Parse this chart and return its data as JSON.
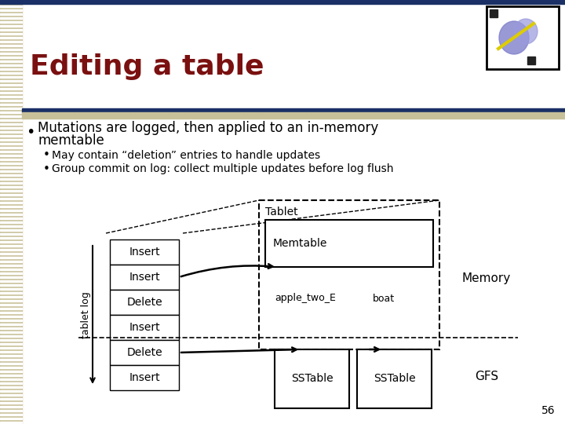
{
  "title": "Editing a table",
  "title_color": "#7a1010",
  "title_fontsize": 26,
  "slide_bg": "#ffffff",
  "left_stripe_color": "#c8c099",
  "top_bar_color": "#1a3066",
  "top_bar2_color": "#1a3066",
  "sep_bar_color": "#c8c099",
  "bullet1_line1": "Mutations are logged, then applied to an in-memory",
  "bullet1_line2": "memtable",
  "bullet2a": "May contain “deletion” entries to handle updates",
  "bullet2b": "Group commit on log: collect multiple updates before log flush",
  "log_labels": [
    "Insert",
    "Insert",
    "Delete",
    "Insert",
    "Delete",
    "Insert"
  ],
  "tablet_label": "Tablet",
  "memtable_label": "Memtable",
  "col1_label": "apple_two_E",
  "col2_label": "boat",
  "sstable_label": "SSTable",
  "memory_label": "Memory",
  "gfs_label": "GFS",
  "tablet_log_label": "tablet log",
  "page_num": "56"
}
